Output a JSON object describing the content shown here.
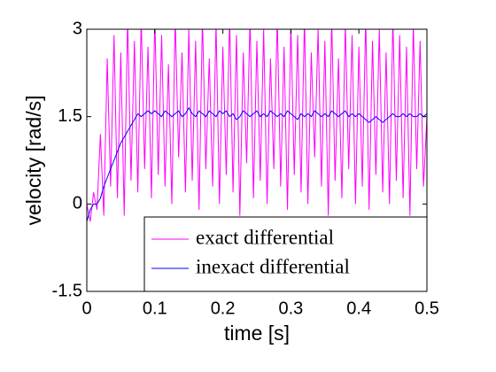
{
  "chart_data": {
    "type": "line",
    "xlabel": "time [s]",
    "ylabel": "velocity [rad/s]",
    "x": [
      0,
      0.005,
      0.01,
      0.015,
      0.02,
      0.025,
      0.03,
      0.035,
      0.04,
      0.045,
      0.05,
      0.055,
      0.06,
      0.065,
      0.07,
      0.075,
      0.08,
      0.085,
      0.09,
      0.095,
      0.1,
      0.105,
      0.11,
      0.115,
      0.12,
      0.125,
      0.13,
      0.135,
      0.14,
      0.145,
      0.15,
      0.155,
      0.16,
      0.165,
      0.17,
      0.175,
      0.18,
      0.185,
      0.19,
      0.195,
      0.2,
      0.205,
      0.21,
      0.215,
      0.22,
      0.225,
      0.23,
      0.235,
      0.24,
      0.245,
      0.25,
      0.255,
      0.26,
      0.265,
      0.27,
      0.275,
      0.28,
      0.285,
      0.29,
      0.295,
      0.3,
      0.305,
      0.31,
      0.315,
      0.32,
      0.325,
      0.33,
      0.335,
      0.34,
      0.345,
      0.35,
      0.355,
      0.36,
      0.365,
      0.37,
      0.375,
      0.38,
      0.385,
      0.39,
      0.395,
      0.4,
      0.405,
      0.41,
      0.415,
      0.42,
      0.425,
      0.43,
      0.435,
      0.44,
      0.445,
      0.45,
      0.455,
      0.46,
      0.465,
      0.47,
      0.475,
      0.48,
      0.485,
      0.49,
      0.495,
      0.5
    ],
    "series": [
      {
        "name": "exact differential",
        "color": "#ff00ff",
        "values": [
          0,
          -0.3,
          0.2,
          -0.1,
          1.2,
          -0.2,
          2.5,
          0.3,
          2.9,
          0.1,
          2.6,
          -0.2,
          3.2,
          0.4,
          2.8,
          0.2,
          3.2,
          0.6,
          2.7,
          0.1,
          3.2,
          0.5,
          2.9,
          0.3,
          2.4,
          0.0,
          3.2,
          0.8,
          2.6,
          0.2,
          3.0,
          0.4,
          2.8,
          -0.1,
          3.2,
          0.6,
          2.5,
          0.3,
          3.1,
          0.0,
          2.7,
          0.5,
          3.2,
          0.2,
          2.9,
          -0.2,
          2.6,
          0.7,
          3.2,
          0.1,
          2.8,
          0.4,
          3.0,
          0.0,
          2.5,
          0.6,
          3.2,
          0.3,
          2.7,
          -0.1,
          3.1,
          0.5,
          2.9,
          0.2,
          3.2,
          0.0,
          2.6,
          0.8,
          3.0,
          0.3,
          2.8,
          -0.2,
          3.2,
          0.4,
          2.5,
          0.1,
          3.1,
          0.6,
          2.9,
          0.0,
          2.7,
          0.3,
          3.2,
          -0.1,
          2.8,
          0.5,
          3.0,
          0.2,
          2.6,
          0.0,
          3.2,
          0.4,
          2.9,
          0.1,
          2.7,
          -0.2,
          3.1,
          0.6,
          2.8,
          0.3,
          1.5
        ]
      },
      {
        "name": "inexact differential",
        "color": "#0000ff",
        "values": [
          -0.3,
          -0.1,
          0.0,
          0.0,
          0.1,
          0.3,
          0.45,
          0.6,
          0.75,
          0.9,
          1.05,
          1.15,
          1.25,
          1.35,
          1.45,
          1.55,
          1.5,
          1.55,
          1.6,
          1.55,
          1.6,
          1.55,
          1.5,
          1.6,
          1.55,
          1.5,
          1.55,
          1.6,
          1.5,
          1.55,
          1.65,
          1.55,
          1.5,
          1.6,
          1.55,
          1.5,
          1.6,
          1.55,
          1.5,
          1.6,
          1.55,
          1.6,
          1.5,
          1.55,
          1.45,
          1.5,
          1.6,
          1.55,
          1.5,
          1.55,
          1.6,
          1.5,
          1.55,
          1.5,
          1.6,
          1.55,
          1.5,
          1.55,
          1.5,
          1.6,
          1.55,
          1.5,
          1.45,
          1.55,
          1.5,
          1.55,
          1.5,
          1.6,
          1.55,
          1.5,
          1.55,
          1.5,
          1.6,
          1.55,
          1.5,
          1.55,
          1.6,
          1.5,
          1.55,
          1.5,
          1.55,
          1.5,
          1.45,
          1.4,
          1.45,
          1.5,
          1.45,
          1.4,
          1.45,
          1.5,
          1.55,
          1.5,
          1.5,
          1.55,
          1.5,
          1.55,
          1.5,
          1.5,
          1.55,
          1.5,
          1.55
        ]
      }
    ],
    "xlim": [
      0,
      0.5
    ],
    "xticks": [
      0,
      0.1,
      0.2,
      0.3,
      0.4,
      0.5
    ],
    "ylim": [
      -1.5,
      3
    ],
    "yticks": [
      -1.5,
      0,
      1.5,
      3
    ],
    "legend": "lower right"
  }
}
